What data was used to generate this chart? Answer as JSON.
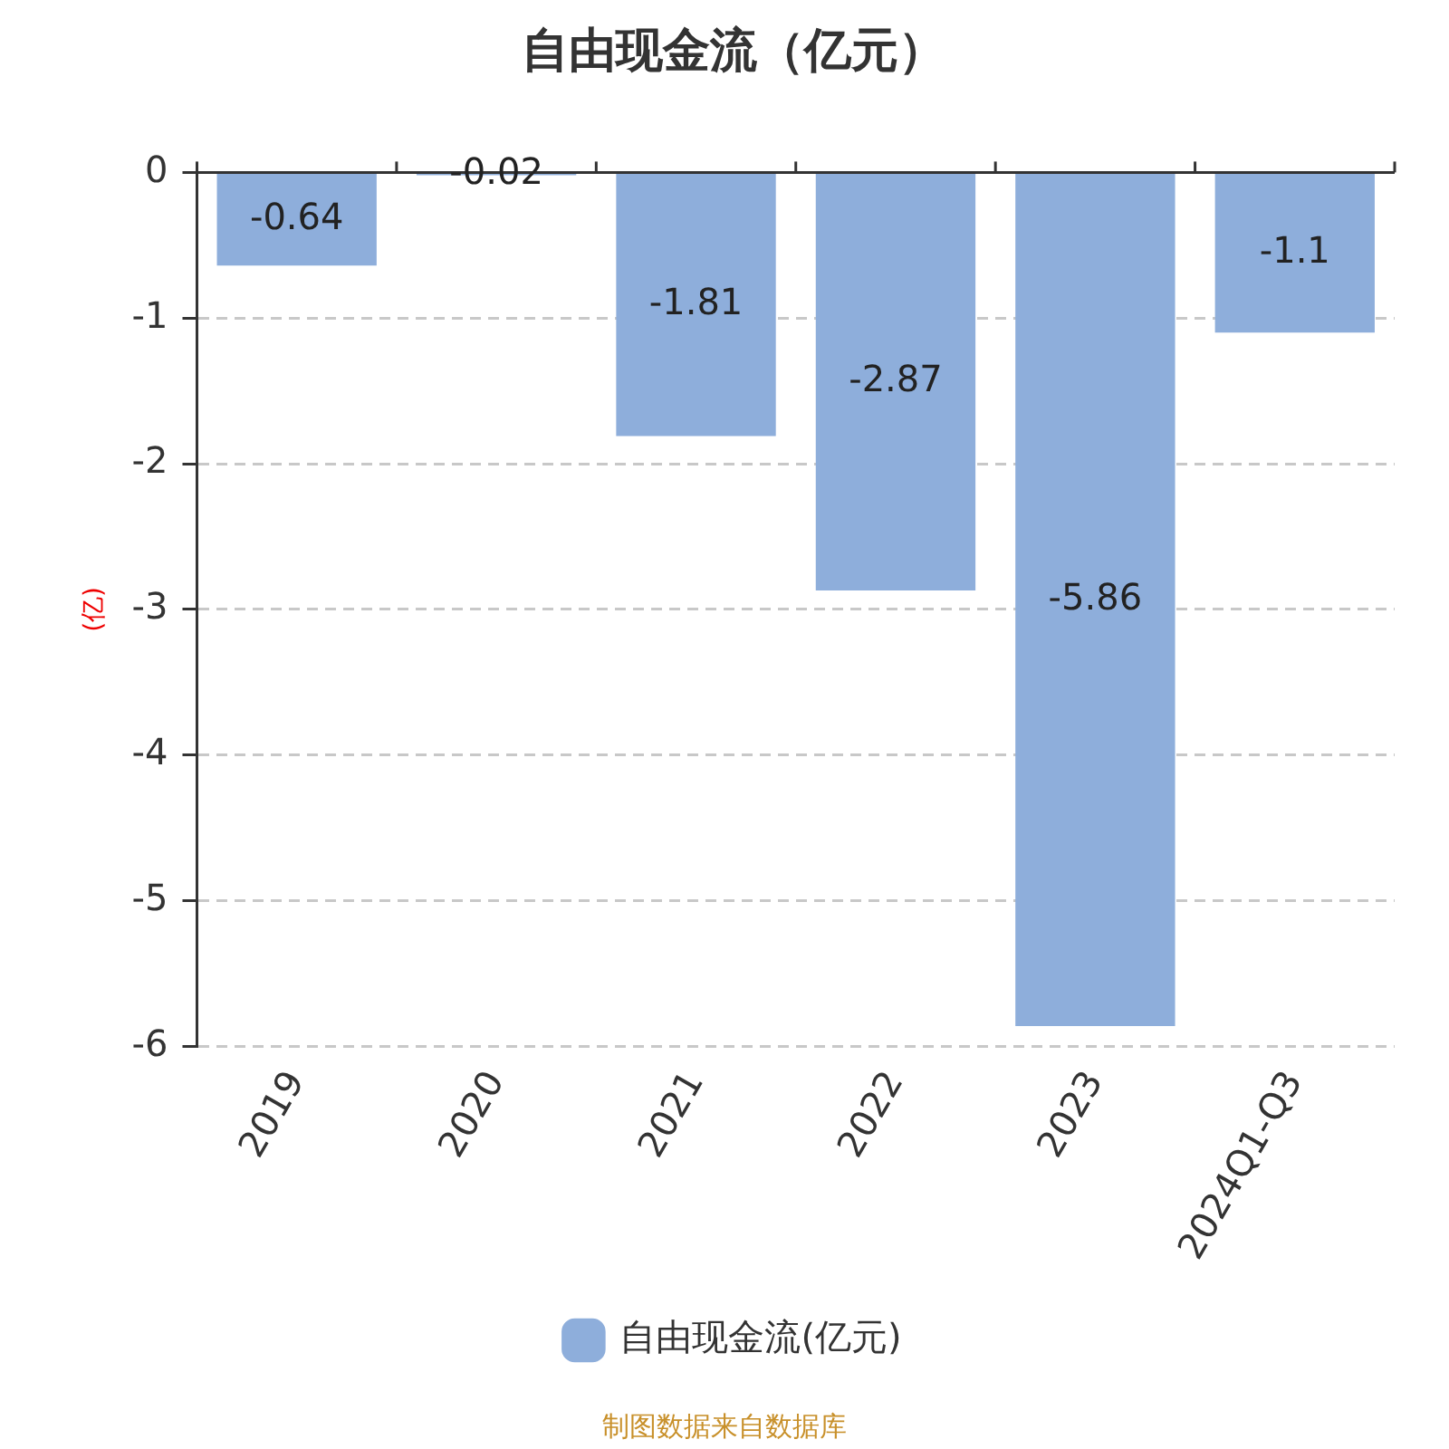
{
  "chart_data": {
    "type": "bar",
    "title": "自由现金流（亿元）",
    "ylabel": "(亿)",
    "categories": [
      "2019",
      "2020",
      "2021",
      "2022",
      "2023",
      "2024Q1-Q3"
    ],
    "series": [
      {
        "name": "自由现金流(亿元)",
        "color": "#8eaedb",
        "values": [
          -0.64,
          -0.02,
          -1.81,
          -2.87,
          -5.86,
          -1.1
        ]
      }
    ],
    "ylim": [
      -6,
      0
    ],
    "yticks": [
      0,
      -1,
      -2,
      -3,
      -4,
      -5,
      -6
    ],
    "grid": "y",
    "legend": "bottom",
    "data_labels": true,
    "annotations": [
      "制图数据来自数据库"
    ]
  }
}
